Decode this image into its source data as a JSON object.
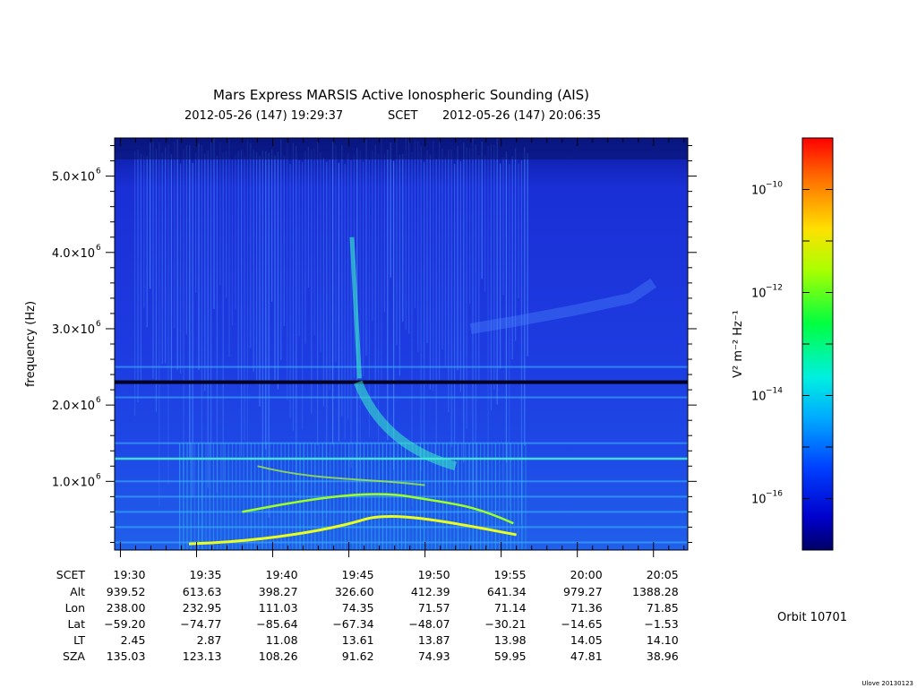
{
  "title": "Mars Express MARSIS Active Ionospheric Sounding (AIS)",
  "time_header": {
    "start": "2012-05-26 (147) 19:29:37",
    "frame": "SCET",
    "end": "2012-05-26 (147) 20:06:35"
  },
  "colors": {
    "spectrogram_background": "#1a2fd6",
    "colorbar": [
      "#000066",
      "#0000ff",
      "#00aaff",
      "#00ffdd",
      "#00ff00",
      "#ffff00",
      "#ff8800",
      "#ff0000"
    ],
    "trace_cyan": "#38f0c8",
    "trace_green": "#9cff2a",
    "trace_yellow": "#e8ff20"
  },
  "chart_data": {
    "type": "heatmap",
    "title": "Mars Express MARSIS Active Ionospheric Sounding (AIS)",
    "ylabel": "frequency (Hz)",
    "ylim": [
      100000,
      5500000
    ],
    "y_ticks": [
      {
        "value": 1000000,
        "mantissa": "1.0×10",
        "exp": "6"
      },
      {
        "value": 2000000,
        "mantissa": "2.0×10",
        "exp": "6"
      },
      {
        "value": 3000000,
        "mantissa": "3.0×10",
        "exp": "6"
      },
      {
        "value": 4000000,
        "mantissa": "4.0×10",
        "exp": "6"
      },
      {
        "value": 5000000,
        "mantissa": "5.0×10",
        "exp": "6"
      }
    ],
    "x_start_minutes": 29.62,
    "x_end_minutes": 67.25,
    "ephemeris": {
      "row_labels": [
        "SCET",
        "Alt",
        "Lon",
        "Lat",
        "LT",
        "SZA"
      ],
      "columns": [
        {
          "minute": 30,
          "SCET": "19:30",
          "Alt": "939.52",
          "Lon": "238.00",
          "Lat": "−59.20",
          "LT": "2.45",
          "SZA": "135.03"
        },
        {
          "minute": 35,
          "SCET": "19:35",
          "Alt": "613.63",
          "Lon": "232.95",
          "Lat": "−74.77",
          "LT": "2.87",
          "SZA": "123.13"
        },
        {
          "minute": 40,
          "SCET": "19:40",
          "Alt": "398.27",
          "Lon": "111.03",
          "Lat": "−85.64",
          "LT": "11.08",
          "SZA": "108.26"
        },
        {
          "minute": 45,
          "SCET": "19:45",
          "Alt": "326.60",
          "Lon": "74.35",
          "Lat": "−67.34",
          "LT": "13.61",
          "SZA": "91.62"
        },
        {
          "minute": 50,
          "SCET": "19:50",
          "Alt": "412.39",
          "Lon": "71.57",
          "Lat": "−48.07",
          "LT": "13.87",
          "SZA": "74.93"
        },
        {
          "minute": 55,
          "SCET": "19:55",
          "Alt": "641.34",
          "Lon": "71.14",
          "Lat": "−30.21",
          "LT": "13.98",
          "SZA": "59.95"
        },
        {
          "minute": 60,
          "SCET": "20:00",
          "Alt": "979.27",
          "Lon": "71.36",
          "Lat": "−14.65",
          "LT": "14.05",
          "SZA": "47.81"
        },
        {
          "minute": 65,
          "SCET": "20:05",
          "Alt": "1388.28",
          "Lon": "71.85",
          "Lat": "−1.53",
          "LT": "14.10",
          "SZA": "38.96"
        }
      ]
    },
    "colorbar": {
      "label": "V² m⁻² Hz⁻¹",
      "scale": "log",
      "range_exp": [
        -17.0,
        -9.0
      ],
      "ticks": [
        {
          "exp": -10,
          "mantissa": "10",
          "exp_text": "−10"
        },
        {
          "exp": -12,
          "mantissa": "10",
          "exp_text": "−12"
        },
        {
          "exp": -14,
          "mantissa": "10",
          "exp_text": "−14"
        },
        {
          "exp": -16,
          "mantissa": "10",
          "exp_text": "−16"
        }
      ]
    },
    "features": {
      "gap_line_frequency": 2300000,
      "harmonic_lines_frequency": [
        200000,
        400000,
        600000,
        800000,
        1000000,
        1300000,
        1500000,
        2100000,
        2500000
      ]
    }
  },
  "orbit_label": "Orbit 10701",
  "footer_credit": "Ulove 20130123"
}
